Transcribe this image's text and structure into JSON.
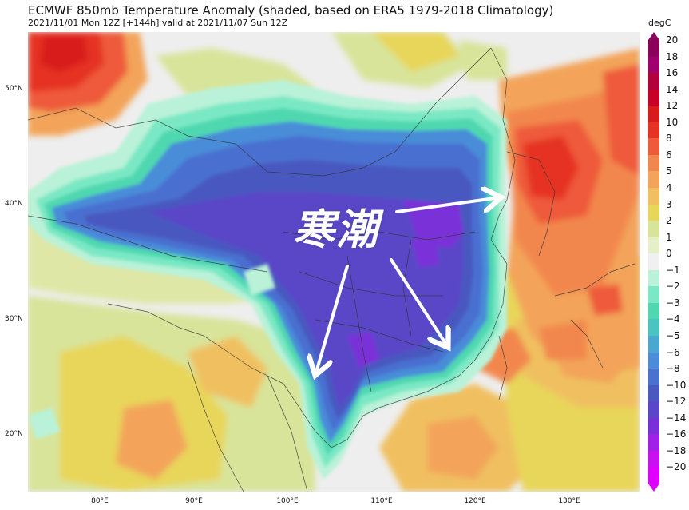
{
  "title": "ECMWF 850mb Temperature Anomaly (shaded, based on ERA5 1979-2018 Climatology)",
  "subtitle": "2021/11/01 Mon 12Z [+144h] valid at 2021/11/07 Sun 12Z",
  "unit": "degC",
  "annotation": "寒潮",
  "lat_labels": [
    "50°N",
    "40°N",
    "30°N",
    "20°N"
  ],
  "lon_labels": [
    "80°E",
    "90°E",
    "100°E",
    "110°E",
    "120°E",
    "130°E"
  ],
  "colorbar": {
    "labels": [
      "20",
      "18",
      "16",
      "14",
      "12",
      "10",
      "8",
      "6",
      "5",
      "4",
      "3",
      "2",
      "1",
      "0",
      "−1",
      "−2",
      "−3",
      "−4",
      "−5",
      "−6",
      "−8",
      "−10",
      "−12",
      "−14",
      "−16",
      "−18",
      "−20"
    ],
    "colors": [
      "#8b005a",
      "#a0006e",
      "#b3003c",
      "#c80028",
      "#d81c1c",
      "#e53222",
      "#ee5a3a",
      "#f2874e",
      "#f3a45a",
      "#f0c060",
      "#e8d65a",
      "#d8e49a",
      "#e6f0c8",
      "#f0f0f0",
      "#b9f2d8",
      "#7ae8c4",
      "#4fd8b0",
      "#4ac4c0",
      "#4aa8d0",
      "#4a8cd8",
      "#4a70d0",
      "#4a58c0",
      "#5a46c8",
      "#7a30d8",
      "#a020e8",
      "#c810f0",
      "#e000ff"
    ]
  }
}
